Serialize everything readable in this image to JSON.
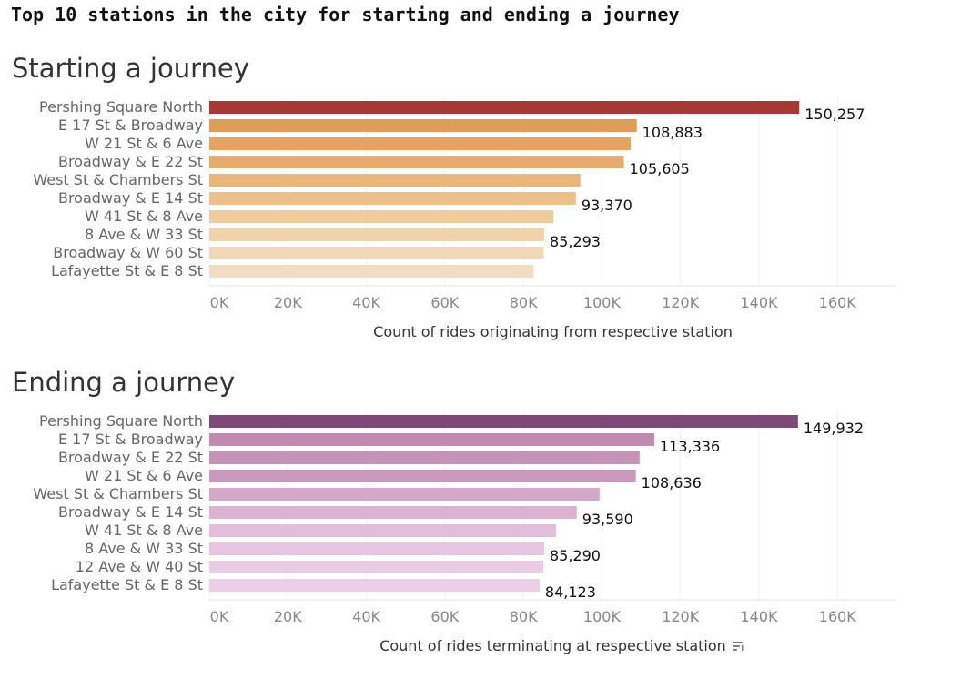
{
  "page_title": "Top 10 stations in the city for starting and ending a journey",
  "chart_data": [
    {
      "type": "bar",
      "orientation": "horizontal",
      "title": "Starting a journey",
      "xlabel": "Count of rides originating from respective station",
      "xlim": [
        0,
        175000
      ],
      "x_ticks": [
        "0K",
        "20K",
        "40K",
        "60K",
        "80K",
        "100K",
        "120K",
        "140K",
        "160K"
      ],
      "x_tick_values": [
        0,
        20000,
        40000,
        60000,
        80000,
        100000,
        120000,
        140000,
        160000
      ],
      "grid": true,
      "categories": [
        "Pershing Square North",
        "E 17 St & Broadway",
        "W 21 St & 6 Ave",
        "Broadway & E 22 St",
        "West St & Chambers St",
        "Broadway & E 14 St",
        "W 41 St & 8 Ave",
        "8 Ave & W 33 St",
        "Broadway & W 60 St",
        "Lafayette St & E 8 St"
      ],
      "values": [
        150257,
        108883,
        107300,
        105605,
        94500,
        93370,
        87700,
        85293,
        85200,
        82600
      ],
      "data_labels": [
        "150,257",
        "108,883",
        "",
        "105,605",
        "",
        "93,370",
        "",
        "85,293",
        "",
        ""
      ],
      "colors": [
        "#a33a36",
        "#e09c5a",
        "#e3a464",
        "#e6ab6e",
        "#e9b67e",
        "#ecbf8b",
        "#efcb9f",
        "#f0d2ab",
        "#f1d8b7",
        "#f2ddc2"
      ]
    },
    {
      "type": "bar",
      "orientation": "horizontal",
      "title": "Ending a journey",
      "xlabel": "Count of rides terminating at respective station",
      "xlim": [
        0,
        175000
      ],
      "x_ticks": [
        "0K",
        "20K",
        "40K",
        "60K",
        "80K",
        "100K",
        "120K",
        "140K",
        "160K"
      ],
      "x_tick_values": [
        0,
        20000,
        40000,
        60000,
        80000,
        100000,
        120000,
        140000,
        160000
      ],
      "grid": true,
      "categories": [
        "Pershing Square North",
        "E 17 St & Broadway",
        "Broadway & E 22 St",
        "W 21 St & 6 Ave",
        "West St & Chambers St",
        "Broadway & E 14 St",
        "W 41 St & 8 Ave",
        "8 Ave & W 33 St",
        "12 Ave & W 40 St",
        "Lafayette St & E 8 St"
      ],
      "values": [
        149932,
        113336,
        109600,
        108636,
        99400,
        93590,
        88300,
        85290,
        85100,
        84123
      ],
      "data_labels": [
        "149,932",
        "113,336",
        "",
        "108,636",
        "",
        "93,590",
        "",
        "85,290",
        "",
        "84,123"
      ],
      "colors": [
        "#7d4a78",
        "#c18aaf",
        "#c692b6",
        "#c998bc",
        "#d5a8c9",
        "#dbb2d2",
        "#e2bedb",
        "#e6c5e0",
        "#e9cbe4",
        "#ebcfe6"
      ],
      "sort_icon": "sort-descending-icon"
    }
  ]
}
